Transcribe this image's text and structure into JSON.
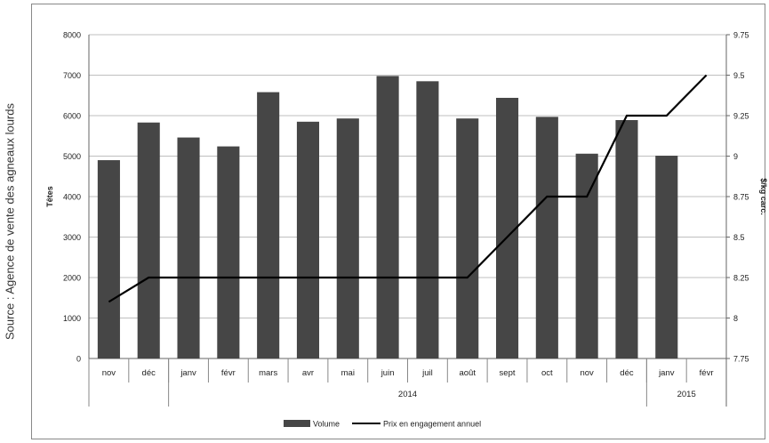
{
  "source_note": "Source : Agence de vente des agneaux lourds",
  "chart_data": {
    "type": "bar",
    "categories": [
      "nov",
      "déc",
      "janv",
      "févr",
      "mars",
      "avr",
      "mai",
      "juin",
      "juil",
      "août",
      "sept",
      "oct",
      "nov",
      "déc",
      "janv",
      "févr"
    ],
    "year_groups": [
      {
        "label": "",
        "start": 0,
        "end": 1
      },
      {
        "label": "2014",
        "start": 2,
        "end": 13
      },
      {
        "label": "2015",
        "start": 14,
        "end": 15
      }
    ],
    "series": [
      {
        "name": "Volume",
        "type": "bar",
        "axis": "left",
        "values": [
          4900,
          5830,
          5460,
          5240,
          6580,
          5850,
          5930,
          6980,
          6850,
          5930,
          6440,
          5970,
          5060,
          5890,
          5010,
          null
        ]
      },
      {
        "name": "Prix en engagement annuel",
        "type": "line",
        "axis": "right",
        "values": [
          8.1,
          8.25,
          8.25,
          8.25,
          8.25,
          8.25,
          8.25,
          8.25,
          8.25,
          8.25,
          8.5,
          8.75,
          8.75,
          9.25,
          9.25,
          9.5
        ]
      }
    ],
    "ylabel": "Têtes",
    "ylim": [
      0,
      8000
    ],
    "yticks": [
      "0",
      "1000",
      "2000",
      "3000",
      "4000",
      "5000",
      "6000",
      "7000",
      "8000"
    ],
    "y2label": "$/kg carc.",
    "y2lim": [
      7.75,
      9.75
    ],
    "y2ticks": [
      "7.75",
      "8",
      "8.25",
      "8.5",
      "8.75",
      "9",
      "9.25",
      "9.5",
      "9.75"
    ],
    "grid": true,
    "legend": "bottom",
    "colors": {
      "bar": "#464646",
      "line": "#000000",
      "grid": "#bfbfbf"
    }
  }
}
